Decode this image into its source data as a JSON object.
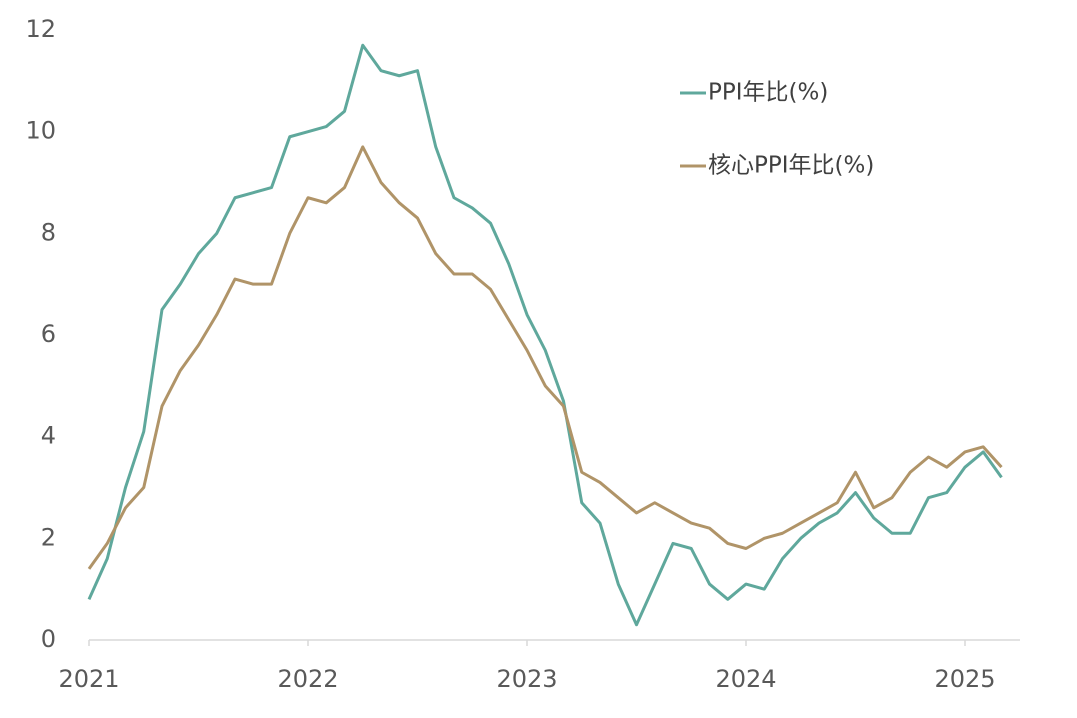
{
  "chart_data": {
    "type": "line",
    "categories": [
      "2021",
      null,
      null,
      null,
      null,
      null,
      null,
      null,
      null,
      null,
      null,
      null,
      "2022",
      null,
      null,
      null,
      null,
      null,
      null,
      null,
      null,
      null,
      null,
      null,
      "2023",
      null,
      null,
      null,
      null,
      null,
      null,
      null,
      null,
      null,
      null,
      null,
      "2024",
      null,
      null,
      null,
      null,
      null,
      null,
      null,
      null,
      null,
      null,
      null,
      "2025",
      null,
      null
    ],
    "series": [
      {
        "name": "PPI年比(%)",
        "color": "#5fa89c",
        "values": [
          0.8,
          1.6,
          3.0,
          4.1,
          6.5,
          7.0,
          7.6,
          8.0,
          8.7,
          8.8,
          8.9,
          9.9,
          10.0,
          10.1,
          10.4,
          11.7,
          11.2,
          11.1,
          11.2,
          9.7,
          8.7,
          8.5,
          8.2,
          7.4,
          6.4,
          5.7,
          4.7,
          2.7,
          2.3,
          1.1,
          0.3,
          1.1,
          1.9,
          1.8,
          1.1,
          0.8,
          1.1,
          1.0,
          1.6,
          2.0,
          2.3,
          2.5,
          2.9,
          2.4,
          2.1,
          2.1,
          2.8,
          2.9,
          3.4,
          3.7,
          3.2
        ]
      },
      {
        "name": "核心PPI年比(%)",
        "color": "#b09468",
        "values": [
          1.4,
          1.9,
          2.6,
          3.0,
          4.6,
          5.3,
          5.8,
          6.4,
          7.1,
          7.0,
          7.0,
          8.0,
          8.7,
          8.6,
          8.9,
          9.7,
          9.0,
          8.6,
          8.3,
          7.6,
          7.2,
          7.2,
          6.9,
          6.3,
          5.7,
          5.0,
          4.6,
          3.3,
          3.1,
          2.8,
          2.5,
          2.7,
          2.5,
          2.3,
          2.2,
          1.9,
          1.8,
          2.0,
          2.1,
          2.3,
          2.5,
          2.7,
          3.3,
          2.6,
          2.8,
          3.3,
          3.6,
          3.4,
          3.7,
          3.8,
          3.4
        ]
      }
    ],
    "ylim": [
      0,
      12
    ],
    "yticks": [
      0,
      2,
      4,
      6,
      8,
      10,
      12
    ],
    "grid": false,
    "legend": "upper right"
  }
}
